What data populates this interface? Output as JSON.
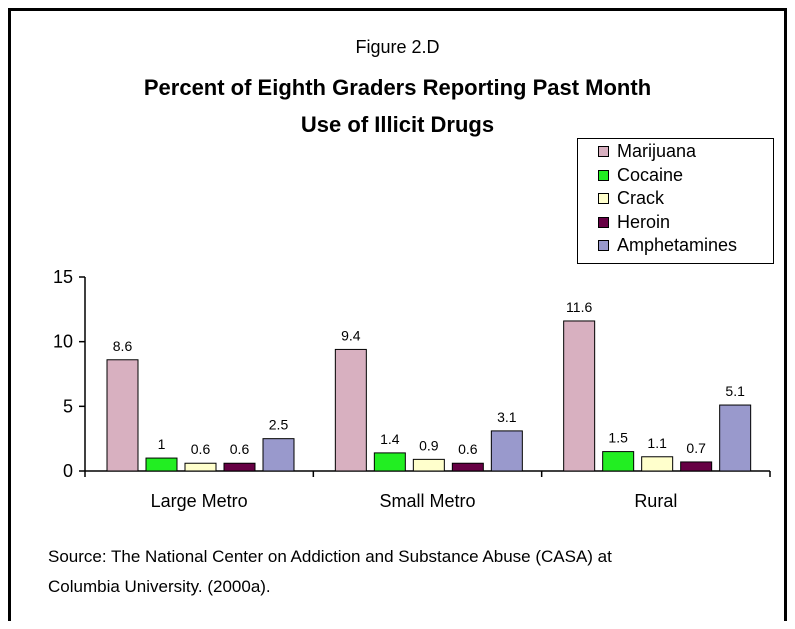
{
  "figure_label": "Figure 2.D",
  "title_line1": "Percent of Eighth Graders Reporting Past Month",
  "title_line2": "Use of Illicit Drugs",
  "source_line1": "Source: The National Center on Addiction and Substance Abuse (CASA) at",
  "source_line2": "Columbia University. (2000a).",
  "chart_data": {
    "type": "bar",
    "title": "Percent of Eighth Graders Reporting Past Month Use of Illicit Drugs",
    "categories": [
      "Large Metro",
      "Small Metro",
      "Rural"
    ],
    "series": [
      {
        "name": "Marijuana",
        "values": [
          8.6,
          9.4,
          11.6
        ],
        "color": "#d8b0c0"
      },
      {
        "name": "Cocaine",
        "values": [
          1,
          1.4,
          1.5
        ],
        "color": "#22ee22"
      },
      {
        "name": "Crack",
        "values": [
          0.6,
          0.9,
          1.1
        ],
        "color": "#ffffcc"
      },
      {
        "name": "Heroin",
        "values": [
          0.6,
          0.6,
          0.7
        ],
        "color": "#660044"
      },
      {
        "name": "Amphetamines",
        "values": [
          2.5,
          3.1,
          5.1
        ],
        "color": "#9999cc"
      }
    ],
    "value_labels": [
      [
        "8.6",
        "9.4",
        "11.6"
      ],
      [
        "1",
        "1.4",
        "1.5"
      ],
      [
        "0.6",
        "0.9",
        "1.1"
      ],
      [
        "0.6",
        "0.6",
        "0.7"
      ],
      [
        "2.5",
        "3.1",
        "5.1"
      ]
    ],
    "y_ticks": [
      "0",
      "5",
      "10",
      "15"
    ],
    "ylim": [
      0,
      15
    ],
    "grid": false,
    "legend_position": "top-right"
  }
}
